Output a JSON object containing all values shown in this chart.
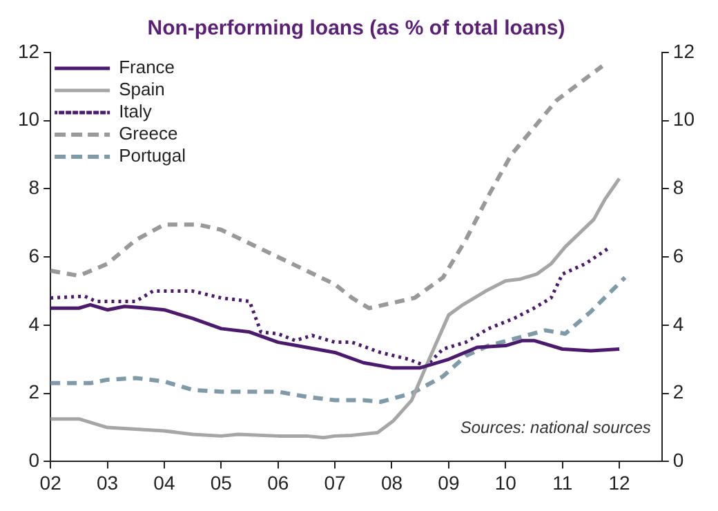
{
  "chart_data": {
    "type": "line",
    "title": "Non-performing loans (as % of total loans)",
    "annotations": [
      "Sources: national sources"
    ],
    "xlim": [
      2002,
      2012.75
    ],
    "xticks": [
      {
        "value": 2002,
        "label": "02"
      },
      {
        "value": 2003,
        "label": "03"
      },
      {
        "value": 2004,
        "label": "04"
      },
      {
        "value": 2005,
        "label": "05"
      },
      {
        "value": 2006,
        "label": "06"
      },
      {
        "value": 2007,
        "label": "07"
      },
      {
        "value": 2008,
        "label": "08"
      },
      {
        "value": 2009,
        "label": "09"
      },
      {
        "value": 2010,
        "label": "10"
      },
      {
        "value": 2011,
        "label": "11"
      },
      {
        "value": 2012,
        "label": "12"
      }
    ],
    "ylim": [
      0,
      12
    ],
    "yticks": [
      0,
      2,
      4,
      6,
      8,
      10,
      12
    ],
    "y2lim": [
      0,
      12
    ],
    "y2ticks": [
      0,
      2,
      4,
      6,
      8,
      10,
      12
    ],
    "grid": false,
    "legend": "top left",
    "marker": "none",
    "series": [
      {
        "name": "France",
        "color": "#4b1a6e",
        "line_style": "solid",
        "x": [
          2002,
          2002.5,
          2002.7,
          2003,
          2003.3,
          2003.7,
          2004,
          2004.5,
          2005,
          2005.5,
          2006,
          2006.5,
          2007,
          2007.5,
          2008,
          2008.5,
          2009,
          2009.5,
          2010,
          2010.3,
          2010.5,
          2011,
          2011.5,
          2012
        ],
        "values": [
          4.5,
          4.5,
          4.6,
          4.45,
          4.55,
          4.5,
          4.45,
          4.2,
          3.9,
          3.8,
          3.5,
          3.35,
          3.2,
          2.9,
          2.75,
          2.75,
          3.0,
          3.35,
          3.4,
          3.55,
          3.55,
          3.3,
          3.25,
          3.3
        ]
      },
      {
        "name": "Spain",
        "color": "#a6a6a6",
        "line_style": "solid",
        "x": [
          2002,
          2002.5,
          2003,
          2003.5,
          2004,
          2004.5,
          2005,
          2005.3,
          2006,
          2006.5,
          2006.8,
          2007,
          2007.3,
          2007.75,
          2008.03,
          2008.35,
          2008.63,
          2009,
          2009.25,
          2009.65,
          2010,
          2010.25,
          2010.55,
          2010.8,
          2011.05,
          2011.55,
          2011.75,
          2012
        ],
        "values": [
          1.25,
          1.25,
          1.0,
          0.95,
          0.9,
          0.8,
          0.75,
          0.8,
          0.75,
          0.75,
          0.7,
          0.75,
          0.77,
          0.85,
          1.2,
          1.8,
          2.9,
          4.3,
          4.6,
          5.0,
          5.3,
          5.35,
          5.5,
          5.8,
          6.3,
          7.1,
          7.7,
          8.3
        ]
      },
      {
        "name": "Italy",
        "color": "#4b1a6e",
        "line_style": "dotted",
        "x": [
          2002,
          2002.6,
          2002.8,
          2003,
          2003.5,
          2003.8,
          2004.5,
          2005,
          2005.5,
          2005.7,
          2006,
          2006.3,
          2006.6,
          2007,
          2007.3,
          2007.8,
          2008.3,
          2008.6,
          2008.9,
          2009.3,
          2009.7,
          2010.15,
          2010.5,
          2010.8,
          2011,
          2011.4,
          2011.85
        ],
        "values": [
          4.8,
          4.85,
          4.7,
          4.7,
          4.7,
          5.0,
          5.0,
          4.8,
          4.7,
          3.8,
          3.75,
          3.55,
          3.7,
          3.5,
          3.5,
          3.2,
          3.0,
          2.8,
          3.3,
          3.5,
          3.9,
          4.2,
          4.5,
          4.8,
          5.5,
          5.8,
          6.3
        ]
      },
      {
        "name": "Greece",
        "color": "#999999",
        "line_style": "dashed",
        "x": [
          2002,
          2002.5,
          2003,
          2003.5,
          2004,
          2004.6,
          2005,
          2005.5,
          2006,
          2006.5,
          2007,
          2007.3,
          2007.6,
          2008.4,
          2008.9,
          2009.3,
          2009.7,
          2010.1,
          2010.5,
          2010.9,
          2011.3,
          2011.7
        ],
        "values": [
          5.6,
          5.45,
          5.8,
          6.5,
          6.95,
          6.95,
          6.8,
          6.4,
          6.0,
          5.6,
          5.2,
          4.8,
          4.5,
          4.8,
          5.4,
          6.5,
          7.8,
          9.0,
          9.8,
          10.6,
          11.1,
          11.6
        ]
      },
      {
        "name": "Portugal",
        "color": "#7f9aa8",
        "line_style": "dashed",
        "x": [
          2002,
          2002.7,
          2003,
          2003.5,
          2004,
          2004.5,
          2005,
          2005.5,
          2006,
          2006.5,
          2007,
          2007.5,
          2007.8,
          2008.35,
          2008.9,
          2009.3,
          2009.7,
          2010.15,
          2010.7,
          2011.05,
          2011.5,
          2012.1
        ],
        "values": [
          2.3,
          2.3,
          2.4,
          2.45,
          2.35,
          2.1,
          2.05,
          2.05,
          2.05,
          1.9,
          1.8,
          1.8,
          1.75,
          2.0,
          2.5,
          3.1,
          3.4,
          3.6,
          3.85,
          3.75,
          4.4,
          5.4
        ]
      }
    ]
  }
}
